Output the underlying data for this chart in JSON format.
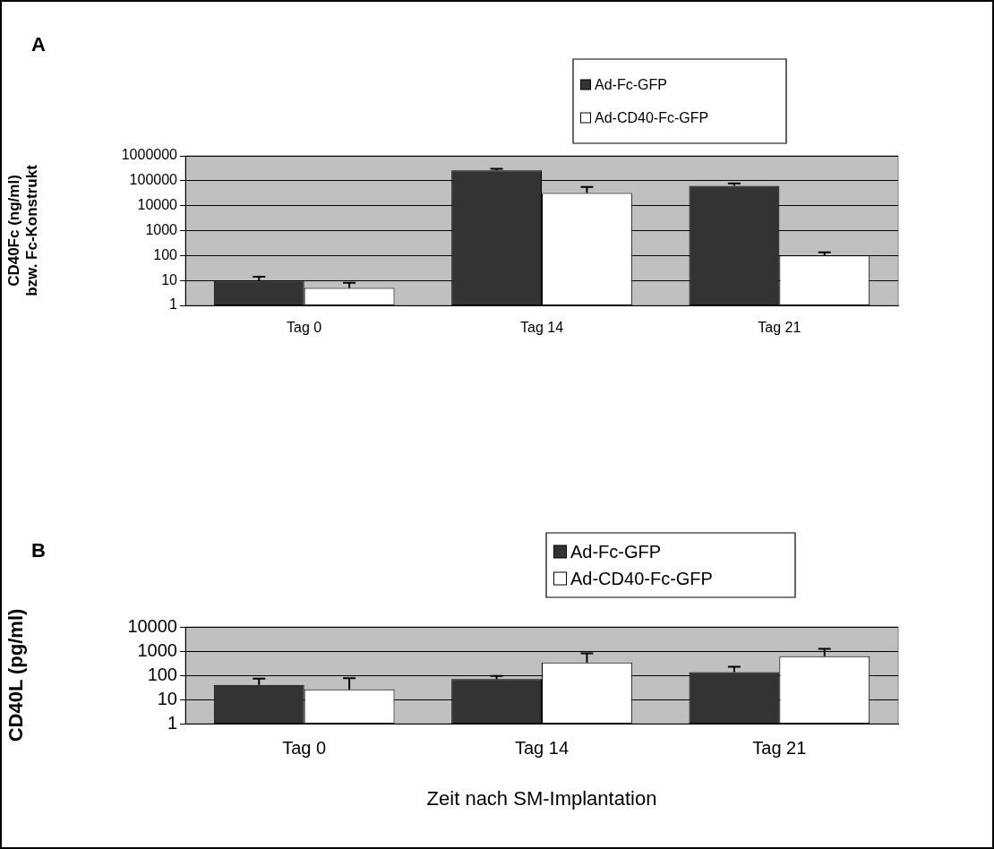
{
  "chart_data": [
    {
      "type": "bar",
      "title": "A",
      "ylabel": "CD40Fc (ng/ml)\nbzw. Fc-Konstrukt",
      "categories": [
        "Tag 0",
        "Tag 14",
        "Tag 21"
      ],
      "log": true,
      "ylim": [
        1,
        1000000
      ],
      "yticks": [
        1,
        10,
        100,
        1000,
        10000,
        100000,
        1000000
      ],
      "grid": "y",
      "legend": "top right",
      "series": [
        {
          "name": "Ad-Fc-GFP",
          "color": "#333333",
          "values": [
            10,
            260000,
            62000
          ],
          "errors": [
            [
              10,
              14
            ],
            [
              260000,
              300000
            ],
            [
              62000,
              78000
            ]
          ]
        },
        {
          "name": "Ad-CD40-Fc-GFP",
          "color": "#ffffff",
          "values": [
            5,
            32000,
            100
          ],
          "errors": [
            [
              5,
              8
            ],
            [
              32000,
              56000
            ],
            [
              100,
              135
            ]
          ]
        }
      ]
    },
    {
      "type": "bar",
      "title": "B",
      "ylabel": "CD40L (pg/ml)",
      "xlabel": "Zeit nach SM-Implantation",
      "categories": [
        "Tag 0",
        "Tag 14",
        "Tag 21"
      ],
      "log": true,
      "ylim": [
        1,
        10000
      ],
      "yticks": [
        1,
        10,
        100,
        1000,
        10000
      ],
      "grid": "y",
      "legend": "top right",
      "series": [
        {
          "name": "Ad-Fc-GFP",
          "color": "#333333",
          "values": [
            40,
            69,
            134
          ],
          "errors": [
            [
              40,
              72
            ],
            [
              69,
              94
            ],
            [
              134,
              225
            ]
          ]
        },
        {
          "name": "Ad-CD40-Fc-GFP",
          "color": "#ffffff",
          "values": [
            26,
            340,
            610
          ],
          "errors": [
            [
              26,
              75
            ],
            [
              340,
              810
            ],
            [
              610,
              1230
            ]
          ]
        }
      ]
    }
  ]
}
